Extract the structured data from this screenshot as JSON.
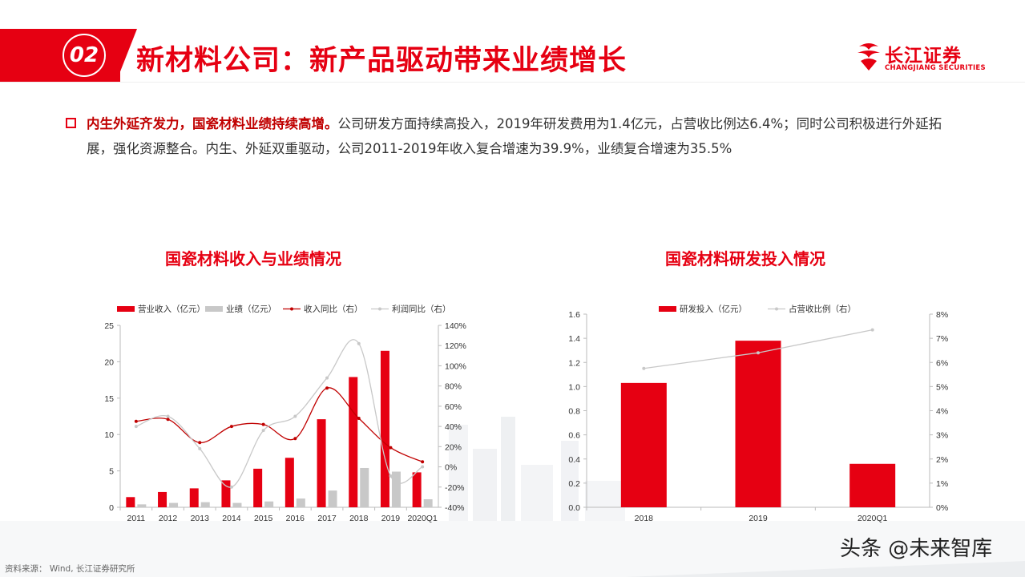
{
  "header": {
    "section_number": "02",
    "title": "新材料公司：新产品驱动带来业绩增长"
  },
  "logo": {
    "name_cn": "长江证券",
    "name_en": "CHANGJIANG SECURITIES"
  },
  "summary": {
    "bold": "内生外延齐发力，国瓷材料业绩持续高增。",
    "text": "公司研发方面持续高投入，2019年研发费用为1.4亿元，占营收比例达6.4%；同时公司积极进行外延拓展，强化资源整合。内生、外延双重驱动，公司2011-2019年收入复合增速为39.9%，业绩复合增速为35.5%"
  },
  "chart_data": [
    {
      "type": "bar",
      "title": "国瓷材料收入与业绩情况",
      "categories": [
        "2011",
        "2012",
        "2013",
        "2014",
        "2015",
        "2016",
        "2017",
        "2018",
        "2019",
        "2020Q1"
      ],
      "series": [
        {
          "name": "营业收入（亿元）",
          "kind": "bar",
          "axis": "left",
          "color": "#e60012",
          "values": [
            1.4,
            2.1,
            2.6,
            3.7,
            5.3,
            6.8,
            12.1,
            17.9,
            21.5,
            4.8
          ]
        },
        {
          "name": "业绩（亿元）",
          "kind": "bar",
          "axis": "left",
          "color": "#c8c8c8",
          "values": [
            0.4,
            0.6,
            0.7,
            0.6,
            0.8,
            1.2,
            2.3,
            5.4,
            4.9,
            1.1
          ]
        },
        {
          "name": "收入同比（右）",
          "kind": "line",
          "axis": "right",
          "color": "#c00000",
          "values": [
            45,
            47,
            24,
            40,
            42,
            28,
            78,
            48,
            19,
            5
          ]
        },
        {
          "name": "利润同比（右）",
          "kind": "line",
          "axis": "right",
          "color": "#c8c8c8",
          "values": [
            40,
            50,
            18,
            -20,
            36,
            50,
            88,
            122,
            -9,
            0
          ]
        }
      ],
      "left_axis": {
        "min": 0,
        "max": 25,
        "ticks": [
          "0",
          "5",
          "10",
          "15",
          "20",
          "25"
        ]
      },
      "right_axis": {
        "min": -40,
        "max": 140,
        "ticks": [
          "-40%",
          "-20%",
          "0%",
          "20%",
          "40%",
          "60%",
          "80%",
          "100%",
          "120%",
          "140%"
        ]
      },
      "legend": "top"
    },
    {
      "type": "bar",
      "title": "国瓷材料研发投入情况",
      "categories": [
        "2018",
        "2019",
        "2020Q1"
      ],
      "series": [
        {
          "name": "研发投入（亿元）",
          "kind": "bar",
          "axis": "left",
          "color": "#e60012",
          "values": [
            1.03,
            1.38,
            0.36
          ]
        },
        {
          "name": "占营收比例（右）",
          "kind": "line",
          "axis": "right",
          "color": "#c8c8c8",
          "values": [
            5.75,
            6.4,
            7.35
          ]
        }
      ],
      "left_axis": {
        "min": 0,
        "max": 1.6,
        "ticks": [
          "0.0",
          "0.2",
          "0.4",
          "0.6",
          "0.8",
          "1.0",
          "1.2",
          "1.4",
          "1.6"
        ]
      },
      "right_axis": {
        "min": 0,
        "max": 8,
        "ticks": [
          "0%",
          "1%",
          "2%",
          "3%",
          "4%",
          "5%",
          "6%",
          "7%",
          "8%"
        ]
      },
      "legend": "top"
    }
  ],
  "footer": {
    "source": "资料来源： Wind, 长江证券研究所",
    "watermark": "头条 @未来智库"
  },
  "colors": {
    "accent": "#e60012",
    "gray": "#c8c8c8"
  }
}
